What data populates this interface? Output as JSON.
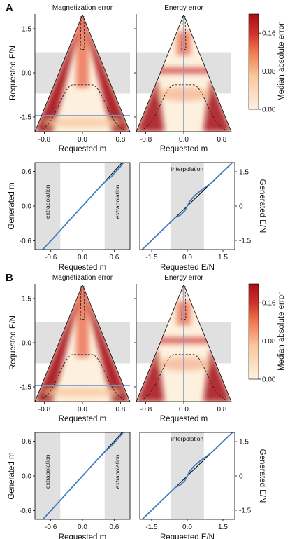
{
  "panels": [
    {
      "letter": "A",
      "heatmaps": [
        {
          "title": "Magnetization error",
          "hot": "magnetization",
          "guide": "horizontal"
        },
        {
          "title": "Energy error",
          "hot": "energy",
          "guide": "vertical"
        }
      ],
      "colorbar": {
        "label": "Median absolute error",
        "ticks": [
          "0.00",
          "0.08",
          "0.16"
        ]
      },
      "lines": [
        {
          "region_label": "extrapolation",
          "xlabel": "Requested m",
          "ylabel": "Generated m",
          "xticks": [
            "-0.6",
            "0.0",
            "0.6"
          ],
          "yticks": [
            "0.6",
            "0.0",
            "-0.6"
          ]
        },
        {
          "region_label": "interpolation",
          "xlabel": "Requested E/N",
          "ylabel": "Generated E/N",
          "xticks": [
            "-1.5",
            "0.0",
            "1.5"
          ],
          "yticks": [
            "1.5",
            "0",
            "-1.5"
          ]
        }
      ]
    },
    {
      "letter": "B",
      "heatmaps": [
        {
          "title": "Magnetization error",
          "hot": "magnetization",
          "guide": "horizontal"
        },
        {
          "title": "Energy error",
          "hot": "energy",
          "guide": "vertical"
        }
      ],
      "colorbar": {
        "label": "Median absolute error",
        "ticks": [
          "0.00",
          "0.08",
          "0.16"
        ]
      },
      "lines": [
        {
          "region_label": "extrapolation",
          "xlabel": "Requested m",
          "ylabel": "Generated m",
          "xticks": [
            "-0.6",
            "0.0",
            "0.6"
          ],
          "yticks": [
            "0.6",
            "0.0",
            "-0.6"
          ]
        },
        {
          "region_label": "interpolation",
          "xlabel": "Requested E/N",
          "ylabel": "Generated E/N",
          "xticks": [
            "-1.5",
            "0.0",
            "1.5"
          ],
          "yticks": [
            "1.5",
            "0",
            "-1.5"
          ]
        }
      ]
    }
  ],
  "heat_axes": {
    "xlabel": "Requested m",
    "ylabel": "Requested E/N",
    "xticks": [
      "-0.8",
      "0.0",
      "0.8"
    ],
    "yticks": [
      "1.5",
      "0.0",
      "-1.5"
    ]
  },
  "colors": {
    "heat_low": "#fdf1de",
    "heat_high": "#a50f15",
    "shade": "#e0e0e0",
    "guide": "#7a9ad8",
    "generated": "#3b7dc4",
    "ideal": "#000000"
  },
  "chart_data": [
    {
      "type": "heatmap",
      "panel": "A",
      "title": "Magnetization error",
      "xlabel": "Requested m",
      "ylabel": "Requested E/N",
      "xlim": [
        -1,
        1
      ],
      "ylim": [
        -2,
        2
      ],
      "colorbar_range": [
        0,
        0.2
      ],
      "colorbar_label": "Median absolute error",
      "extrapolation_band_E": [
        -0.7,
        0.7
      ],
      "guide_line": {
        "E": -1.45
      }
    },
    {
      "type": "heatmap",
      "panel": "A",
      "title": "Energy error",
      "xlabel": "Requested m",
      "ylabel": "Requested E/N",
      "xlim": [
        -1,
        1
      ],
      "ylim": [
        -2,
        2
      ],
      "colorbar_range": [
        0,
        0.2
      ],
      "colorbar_label": "Median absolute error",
      "extrapolation_band_E": [
        -0.7,
        0.7
      ],
      "guide_line": {
        "m": 0
      }
    },
    {
      "type": "line",
      "panel": "A",
      "xlabel": "Requested m",
      "ylabel": "Generated m",
      "xlim": [
        -0.9,
        0.9
      ],
      "ylim": [
        -0.75,
        0.75
      ],
      "shaded_regions": [
        [
          -0.9,
          -0.42
        ],
        [
          0.42,
          0.9
        ]
      ],
      "region_label": "extrapolation",
      "series": [
        {
          "x": [
            -0.9,
            0.9
          ],
          "y": [
            -0.9,
            0.9
          ]
        },
        {
          "x": [
            -0.9,
            -0.6,
            -0.3,
            0.0,
            0.3,
            0.45,
            0.55,
            0.7,
            0.9
          ],
          "y": [
            -0.89,
            -0.6,
            -0.3,
            0.0,
            0.3,
            0.44,
            0.51,
            0.66,
            0.9
          ]
        }
      ]
    },
    {
      "type": "line",
      "panel": "A",
      "xlabel": "Requested E/N",
      "ylabel": "Generated E/N",
      "xlim": [
        -2,
        2
      ],
      "ylim": [
        -1.9,
        1.9
      ],
      "shaded_regions": [
        [
          -0.7,
          0.7
        ]
      ],
      "region_label": "interpolation",
      "series": [
        {
          "x": [
            -2,
            2
          ],
          "y": [
            -2,
            2
          ]
        },
        {
          "x": [
            -2.0,
            -1.0,
            -0.5,
            -0.3,
            -0.1,
            0.0,
            0.1,
            0.3,
            0.6,
            1.0,
            2.0
          ],
          "y": [
            -2.0,
            -1.0,
            -0.5,
            -0.4,
            -0.2,
            0.0,
            0.2,
            0.45,
            0.7,
            1.0,
            2.0
          ]
        }
      ]
    },
    {
      "type": "heatmap",
      "panel": "B",
      "title": "Magnetization error",
      "xlabel": "Requested m",
      "ylabel": "Requested E/N",
      "xlim": [
        -1,
        1
      ],
      "ylim": [
        -2,
        2
      ],
      "colorbar_range": [
        0,
        0.2
      ],
      "colorbar_label": "Median absolute error",
      "extrapolation_band_E": [
        -0.7,
        0.7
      ],
      "guide_line": {
        "E": -1.45
      }
    },
    {
      "type": "heatmap",
      "panel": "B",
      "title": "Energy error",
      "xlabel": "Requested m",
      "ylabel": "Requested E/N",
      "xlim": [
        -1,
        1
      ],
      "ylim": [
        -2,
        2
      ],
      "colorbar_range": [
        0,
        0.2
      ],
      "colorbar_label": "Median absolute error",
      "extrapolation_band_E": [
        -0.7,
        0.7
      ],
      "guide_line": {
        "m": 0
      }
    },
    {
      "type": "line",
      "panel": "B",
      "xlabel": "Requested m",
      "ylabel": "Generated m",
      "xlim": [
        -0.9,
        0.9
      ],
      "ylim": [
        -0.75,
        0.75
      ],
      "shaded_regions": [
        [
          -0.9,
          -0.42
        ],
        [
          0.42,
          0.9
        ]
      ],
      "region_label": "extrapolation",
      "series": [
        {
          "x": [
            -0.9,
            0.9
          ],
          "y": [
            -0.9,
            0.9
          ]
        },
        {
          "x": [
            -0.9,
            -0.6,
            -0.3,
            0.0,
            0.3,
            0.45,
            0.55,
            0.7,
            0.9
          ],
          "y": [
            -0.9,
            -0.6,
            -0.3,
            0.0,
            0.3,
            0.44,
            0.52,
            0.67,
            0.9
          ]
        }
      ]
    },
    {
      "type": "line",
      "panel": "B",
      "xlabel": "Requested E/N",
      "ylabel": "Generated E/N",
      "xlim": [
        -2,
        2
      ],
      "ylim": [
        -1.9,
        1.9
      ],
      "shaded_regions": [
        [
          -0.7,
          0.7
        ]
      ],
      "region_label": "interpolation",
      "series": [
        {
          "x": [
            -2,
            2
          ],
          "y": [
            -2,
            2
          ]
        },
        {
          "x": [
            -2.0,
            -1.0,
            -0.5,
            -0.3,
            -0.1,
            0.0,
            0.1,
            0.3,
            0.6,
            1.0,
            2.0
          ],
          "y": [
            -2.0,
            -1.0,
            -0.5,
            -0.4,
            -0.2,
            0.0,
            0.2,
            0.45,
            0.7,
            1.0,
            2.0
          ]
        }
      ]
    }
  ]
}
